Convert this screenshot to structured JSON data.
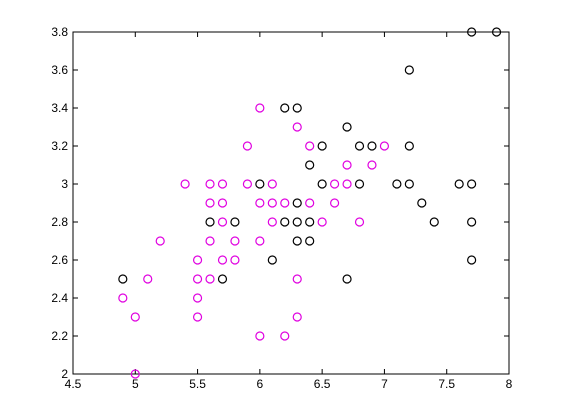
{
  "chart_data": {
    "type": "scatter",
    "title": "",
    "xlabel": "",
    "ylabel": "",
    "xlim": [
      4.5,
      8
    ],
    "ylim": [
      2,
      3.8
    ],
    "xticks": [
      "4.5",
      "5",
      "5.5",
      "6",
      "6.5",
      "7",
      "7.5",
      "8"
    ],
    "yticks": [
      "2",
      "2.2",
      "2.4",
      "2.6",
      "2.8",
      "3",
      "3.2",
      "3.4",
      "3.6",
      "3.8"
    ],
    "grid": false,
    "legend": "none",
    "series": [
      {
        "color": "#000000",
        "marker": "circle-open",
        "points": [
          [
            4.9,
            2.5
          ],
          [
            5.6,
            2.8
          ],
          [
            5.7,
            2.5
          ],
          [
            5.8,
            2.8
          ],
          [
            6.0,
            3.0
          ],
          [
            6.1,
            2.6
          ],
          [
            6.2,
            3.4
          ],
          [
            6.2,
            2.8
          ],
          [
            6.3,
            3.4
          ],
          [
            6.3,
            2.9
          ],
          [
            6.3,
            2.8
          ],
          [
            6.3,
            2.7
          ],
          [
            6.4,
            3.1
          ],
          [
            6.4,
            2.8
          ],
          [
            6.4,
            2.7
          ],
          [
            6.5,
            3.2
          ],
          [
            6.5,
            3.0
          ],
          [
            6.7,
            3.3
          ],
          [
            6.7,
            2.5
          ],
          [
            6.8,
            3.2
          ],
          [
            6.8,
            3.0
          ],
          [
            6.9,
            3.2
          ],
          [
            7.1,
            3.0
          ],
          [
            7.2,
            3.6
          ],
          [
            7.2,
            3.2
          ],
          [
            7.2,
            3.0
          ],
          [
            7.3,
            2.9
          ],
          [
            7.4,
            2.8
          ],
          [
            7.6,
            3.0
          ],
          [
            7.7,
            3.8
          ],
          [
            7.7,
            3.0
          ],
          [
            7.7,
            2.8
          ],
          [
            7.7,
            2.6
          ],
          [
            7.9,
            3.8
          ]
        ]
      },
      {
        "color": "#e000e0",
        "marker": "circle-open",
        "points": [
          [
            4.9,
            2.4
          ],
          [
            5.0,
            2.3
          ],
          [
            5.0,
            2.0
          ],
          [
            5.1,
            2.5
          ],
          [
            5.2,
            2.7
          ],
          [
            5.4,
            3.0
          ],
          [
            5.5,
            2.6
          ],
          [
            5.5,
            2.5
          ],
          [
            5.5,
            2.4
          ],
          [
            5.5,
            2.3
          ],
          [
            5.6,
            3.0
          ],
          [
            5.6,
            2.9
          ],
          [
            5.6,
            2.7
          ],
          [
            5.6,
            2.5
          ],
          [
            5.7,
            3.0
          ],
          [
            5.7,
            2.9
          ],
          [
            5.7,
            2.8
          ],
          [
            5.7,
            2.6
          ],
          [
            5.8,
            2.7
          ],
          [
            5.8,
            2.6
          ],
          [
            5.9,
            3.2
          ],
          [
            5.9,
            3.0
          ],
          [
            6.0,
            3.4
          ],
          [
            6.0,
            2.9
          ],
          [
            6.0,
            2.7
          ],
          [
            6.0,
            2.2
          ],
          [
            6.1,
            3.0
          ],
          [
            6.1,
            2.9
          ],
          [
            6.1,
            2.8
          ],
          [
            6.2,
            2.9
          ],
          [
            6.2,
            2.2
          ],
          [
            6.3,
            3.3
          ],
          [
            6.3,
            2.5
          ],
          [
            6.3,
            2.3
          ],
          [
            6.4,
            3.2
          ],
          [
            6.4,
            2.9
          ],
          [
            6.5,
            2.8
          ],
          [
            6.6,
            3.0
          ],
          [
            6.6,
            2.9
          ],
          [
            6.7,
            3.1
          ],
          [
            6.7,
            3.0
          ],
          [
            6.8,
            2.8
          ],
          [
            6.9,
            3.1
          ],
          [
            7.0,
            3.2
          ]
        ]
      }
    ]
  }
}
